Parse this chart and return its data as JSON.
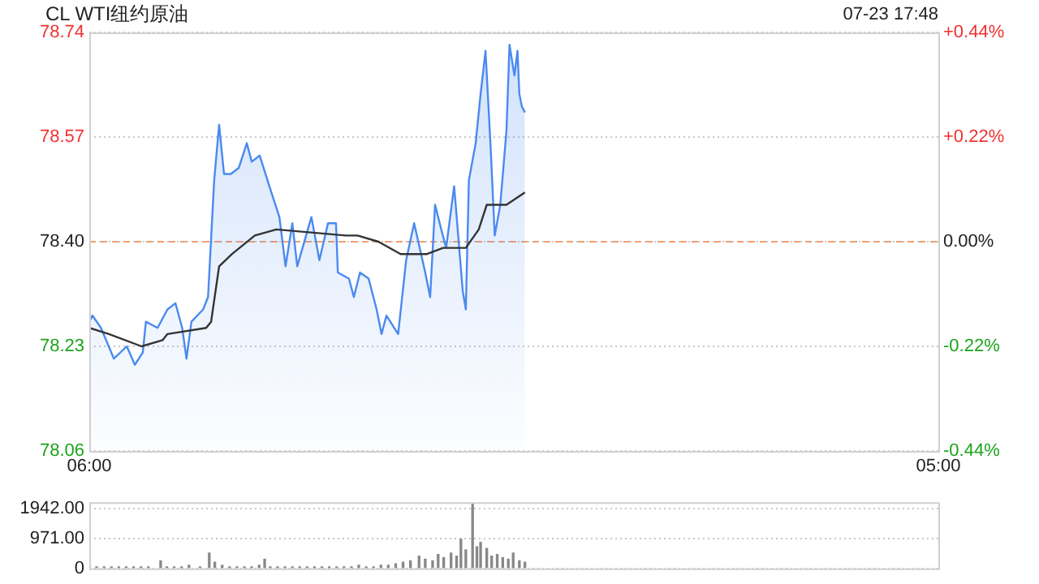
{
  "chart_data": [
    {
      "type": "area",
      "title": "CL WTI纽约原油",
      "annotations": [
        "07-23 17:48"
      ],
      "xlim": [
        "--07-23T06:00",
        "--07-24T05:00"
      ],
      "xticks": [
        {
          "value": "--07-23T06:00",
          "label": "06:00"
        },
        {
          "value": "--07-24T05:00",
          "label": "05:00"
        }
      ],
      "ylim": [
        78.06,
        78.74
      ],
      "yticks": [
        {
          "value": 78.06,
          "label": "78.06"
        },
        {
          "value": 78.23,
          "label": "78.23"
        },
        {
          "value": 78.4,
          "label": "78.40"
        },
        {
          "value": 78.57,
          "label": "78.57"
        },
        {
          "value": 78.74,
          "label": "78.74"
        }
      ],
      "y2lim": [
        -0.44,
        0.44
      ],
      "y2ticks": [
        {
          "value": -0.44,
          "label": "-0.44%"
        },
        {
          "value": -0.22,
          "label": "-0.22%"
        },
        {
          "value": 0,
          "label": "0.00%"
        },
        {
          "value": 0.22,
          "label": "+0.22%"
        },
        {
          "value": 0.44,
          "label": "+0.44%"
        }
      ],
      "grid": "y",
      "legend": false,
      "ref_lines": [
        {
          "axis": "y",
          "value": 78.4,
          "color": "#f0a070",
          "line_style": "dashed"
        }
      ],
      "series": [
        {
          "type": "area",
          "color": "#4a8af0",
          "x": [
            "--07-23T06:00",
            "--07-23T06:05",
            "--07-23T06:19",
            "--07-23T06:40",
            "--07-23T07:01",
            "--07-23T07:14",
            "--07-23T07:27",
            "--07-23T07:32",
            "--07-23T07:51",
            "--07-23T08:07",
            "--07-23T08:20",
            "--07-23T08:31",
            "--07-23T08:38",
            "--07-23T08:46",
            "--07-23T09:05",
            "--07-23T09:13",
            "--07-23T09:23",
            "--07-23T09:31",
            "--07-23T09:39",
            "--07-23T09:50",
            "--07-23T10:03",
            "--07-23T10:16",
            "--07-23T10:24",
            "--07-23T10:37",
            "--07-23T10:56",
            "--07-23T11:09",
            "--07-23T11:19",
            "--07-23T11:30",
            "--07-23T11:38",
            "--07-23T12:01",
            "--07-23T12:14",
            "--07-23T12:28",
            "--07-23T12:41",
            "--07-23T12:44",
            "--07-23T13:02",
            "--07-23T13:10",
            "--07-23T13:20",
            "--07-23T13:34",
            "--07-23T13:47",
            "--07-23T13:55",
            "--07-23T14:03",
            "--07-23T14:22",
            "--07-23T14:35",
            "--07-23T14:48",
            "--07-23T15:06",
            "--07-23T15:14",
            "--07-23T15:22",
            "--07-23T15:32",
            "--07-23T15:40",
            "--07-23T15:53",
            "--07-23T16:07",
            "--07-23T16:12",
            "--07-23T16:17",
            "--07-23T16:28",
            "--07-23T16:36",
            "--07-23T16:44",
            "--07-23T16:52",
            "--07-23T16:59",
            "--07-23T17:08",
            "--07-23T17:18",
            "--07-23T17:23",
            "--07-23T17:31",
            "--07-23T17:36",
            "--07-23T17:39",
            "--07-23T17:43",
            "--07-23T17:48"
          ],
          "values": [
            78.27,
            78.28,
            78.26,
            78.21,
            78.23,
            78.2,
            78.22,
            78.27,
            78.26,
            78.29,
            78.3,
            78.26,
            78.21,
            78.27,
            78.29,
            78.31,
            78.5,
            78.59,
            78.51,
            78.51,
            78.52,
            78.56,
            78.53,
            78.54,
            78.48,
            78.44,
            78.36,
            78.43,
            78.36,
            78.44,
            78.37,
            78.43,
            78.43,
            78.35,
            78.34,
            78.31,
            78.35,
            78.34,
            78.29,
            78.25,
            78.28,
            78.25,
            78.37,
            78.43,
            78.35,
            78.31,
            78.46,
            78.42,
            78.39,
            78.49,
            78.32,
            78.29,
            78.5,
            78.56,
            78.64,
            78.71,
            78.56,
            78.41,
            78.46,
            78.58,
            78.72,
            78.67,
            78.71,
            78.64,
            78.62,
            78.61
          ]
        },
        {
          "type": "line",
          "color": "#333333",
          "x": [
            "--07-23T06:00",
            "--07-23T06:32",
            "--07-23T07:25",
            "--07-23T07:59",
            "--07-23T08:07",
            "--07-23T09:10",
            "--07-23T09:18",
            "--07-23T09:31",
            "--07-23T09:52",
            "--07-23T10:29",
            "--07-23T11:04",
            "--07-23T12:57",
            "--07-23T13:16",
            "--07-23T13:50",
            "--07-23T14:26",
            "--07-23T15:09",
            "--07-23T15:35",
            "--07-23T16:12",
            "--07-23T16:33",
            "--07-23T16:46",
            "--07-23T17:18",
            "--07-23T17:48"
          ],
          "values": [
            78.26,
            78.25,
            78.23,
            78.24,
            78.25,
            78.26,
            78.27,
            78.36,
            78.38,
            78.41,
            78.42,
            78.41,
            78.41,
            78.4,
            78.38,
            78.38,
            78.39,
            78.39,
            78.42,
            78.46,
            78.46,
            78.48
          ]
        }
      ]
    },
    {
      "type": "bar",
      "xlim": [
        "--07-23T06:00",
        "--07-24T05:00"
      ],
      "ylim": [
        0,
        2150
      ],
      "yticks": [
        {
          "value": 0,
          "label": "0"
        },
        {
          "value": 971,
          "label": "971.00"
        },
        {
          "value": 1942,
          "label": "1942.00"
        }
      ],
      "grid": "y",
      "legend": false,
      "tick_labels": "y",
      "color": "#888888",
      "x": [
        "--07-23T06:00",
        "--07-23T06:12",
        "--07-23T06:24",
        "--07-23T06:36",
        "--07-23T06:48",
        "--07-23T07:00",
        "--07-23T07:12",
        "--07-23T07:24",
        "--07-23T07:36",
        "--07-23T07:56",
        "--07-23T08:06",
        "--07-23T08:18",
        "--07-23T08:30",
        "--07-23T08:42",
        "--07-23T09:00",
        "--07-23T09:15",
        "--07-23T09:24",
        "--07-23T09:36",
        "--07-23T09:48",
        "--07-23T10:00",
        "--07-23T10:12",
        "--07-23T10:24",
        "--07-23T10:36",
        "--07-23T10:45",
        "--07-23T10:54",
        "--07-23T11:06",
        "--07-23T11:18",
        "--07-23T11:30",
        "--07-23T11:42",
        "--07-23T11:54",
        "--07-23T12:06",
        "--07-23T12:18",
        "--07-23T12:30",
        "--07-23T12:42",
        "--07-23T12:54",
        "--07-23T13:06",
        "--07-23T13:18",
        "--07-23T13:30",
        "--07-23T13:42",
        "--07-23T13:54",
        "--07-23T14:06",
        "--07-23T14:18",
        "--07-23T14:30",
        "--07-23T14:42",
        "--07-23T14:56",
        "--07-23T15:06",
        "--07-23T15:18",
        "--07-23T15:27",
        "--07-23T15:36",
        "--07-23T15:48",
        "--07-23T15:57",
        "--07-23T16:04",
        "--07-23T16:12",
        "--07-23T16:23",
        "--07-23T16:30",
        "--07-23T16:36",
        "--07-23T16:46",
        "--07-23T16:54",
        "--07-23T17:03",
        "--07-23T17:12",
        "--07-23T17:21",
        "--07-23T17:29",
        "--07-23T17:39",
        "--07-23T17:48"
      ],
      "values": [
        50,
        50,
        50,
        50,
        50,
        50,
        50,
        50,
        50,
        250,
        50,
        50,
        50,
        100,
        50,
        500,
        200,
        100,
        50,
        50,
        50,
        50,
        100,
        300,
        50,
        50,
        50,
        50,
        50,
        50,
        50,
        50,
        50,
        50,
        50,
        50,
        100,
        50,
        50,
        100,
        100,
        150,
        200,
        250,
        400,
        300,
        250,
        450,
        350,
        500,
        400,
        950,
        600,
        2100,
        700,
        850,
        650,
        400,
        450,
        350,
        300,
        500,
        250,
        200
      ]
    }
  ]
}
